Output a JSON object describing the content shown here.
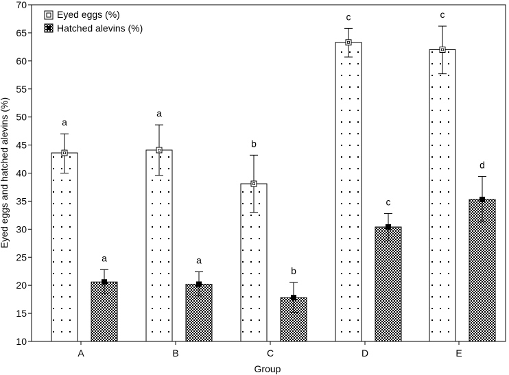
{
  "chart_data": {
    "type": "bar",
    "title": "",
    "xlabel": "Group",
    "ylabel": "Eyed eggs and hatched alevins (%)",
    "ylim": [
      10,
      70
    ],
    "yticks": [
      "10",
      "15",
      "20",
      "25",
      "30",
      "35",
      "40",
      "45",
      "50",
      "55",
      "60",
      "65",
      "70"
    ],
    "categories": [
      "A",
      "B",
      "C",
      "D",
      "E"
    ],
    "legend_position": "top-left",
    "grid": false,
    "series": [
      {
        "name": "Eyed eggs (%)",
        "values": [
          43.6,
          44.1,
          38.1,
          63.3,
          62.0
        ],
        "err_low": [
          40.0,
          39.6,
          33.0,
          60.7,
          57.7
        ],
        "err_high": [
          47.0,
          48.6,
          43.2,
          65.8,
          66.2
        ],
        "letters": [
          "a",
          "a",
          "b",
          "c",
          "c"
        ]
      },
      {
        "name": "Hatched alevins (%)",
        "values": [
          20.6,
          20.2,
          17.8,
          30.4,
          35.3
        ],
        "err_low": [
          18.6,
          18.1,
          15.2,
          27.9,
          31.3
        ],
        "err_high": [
          22.8,
          22.4,
          20.5,
          32.8,
          39.4
        ],
        "letters": [
          "a",
          "a",
          "b",
          "c",
          "d"
        ]
      }
    ]
  }
}
